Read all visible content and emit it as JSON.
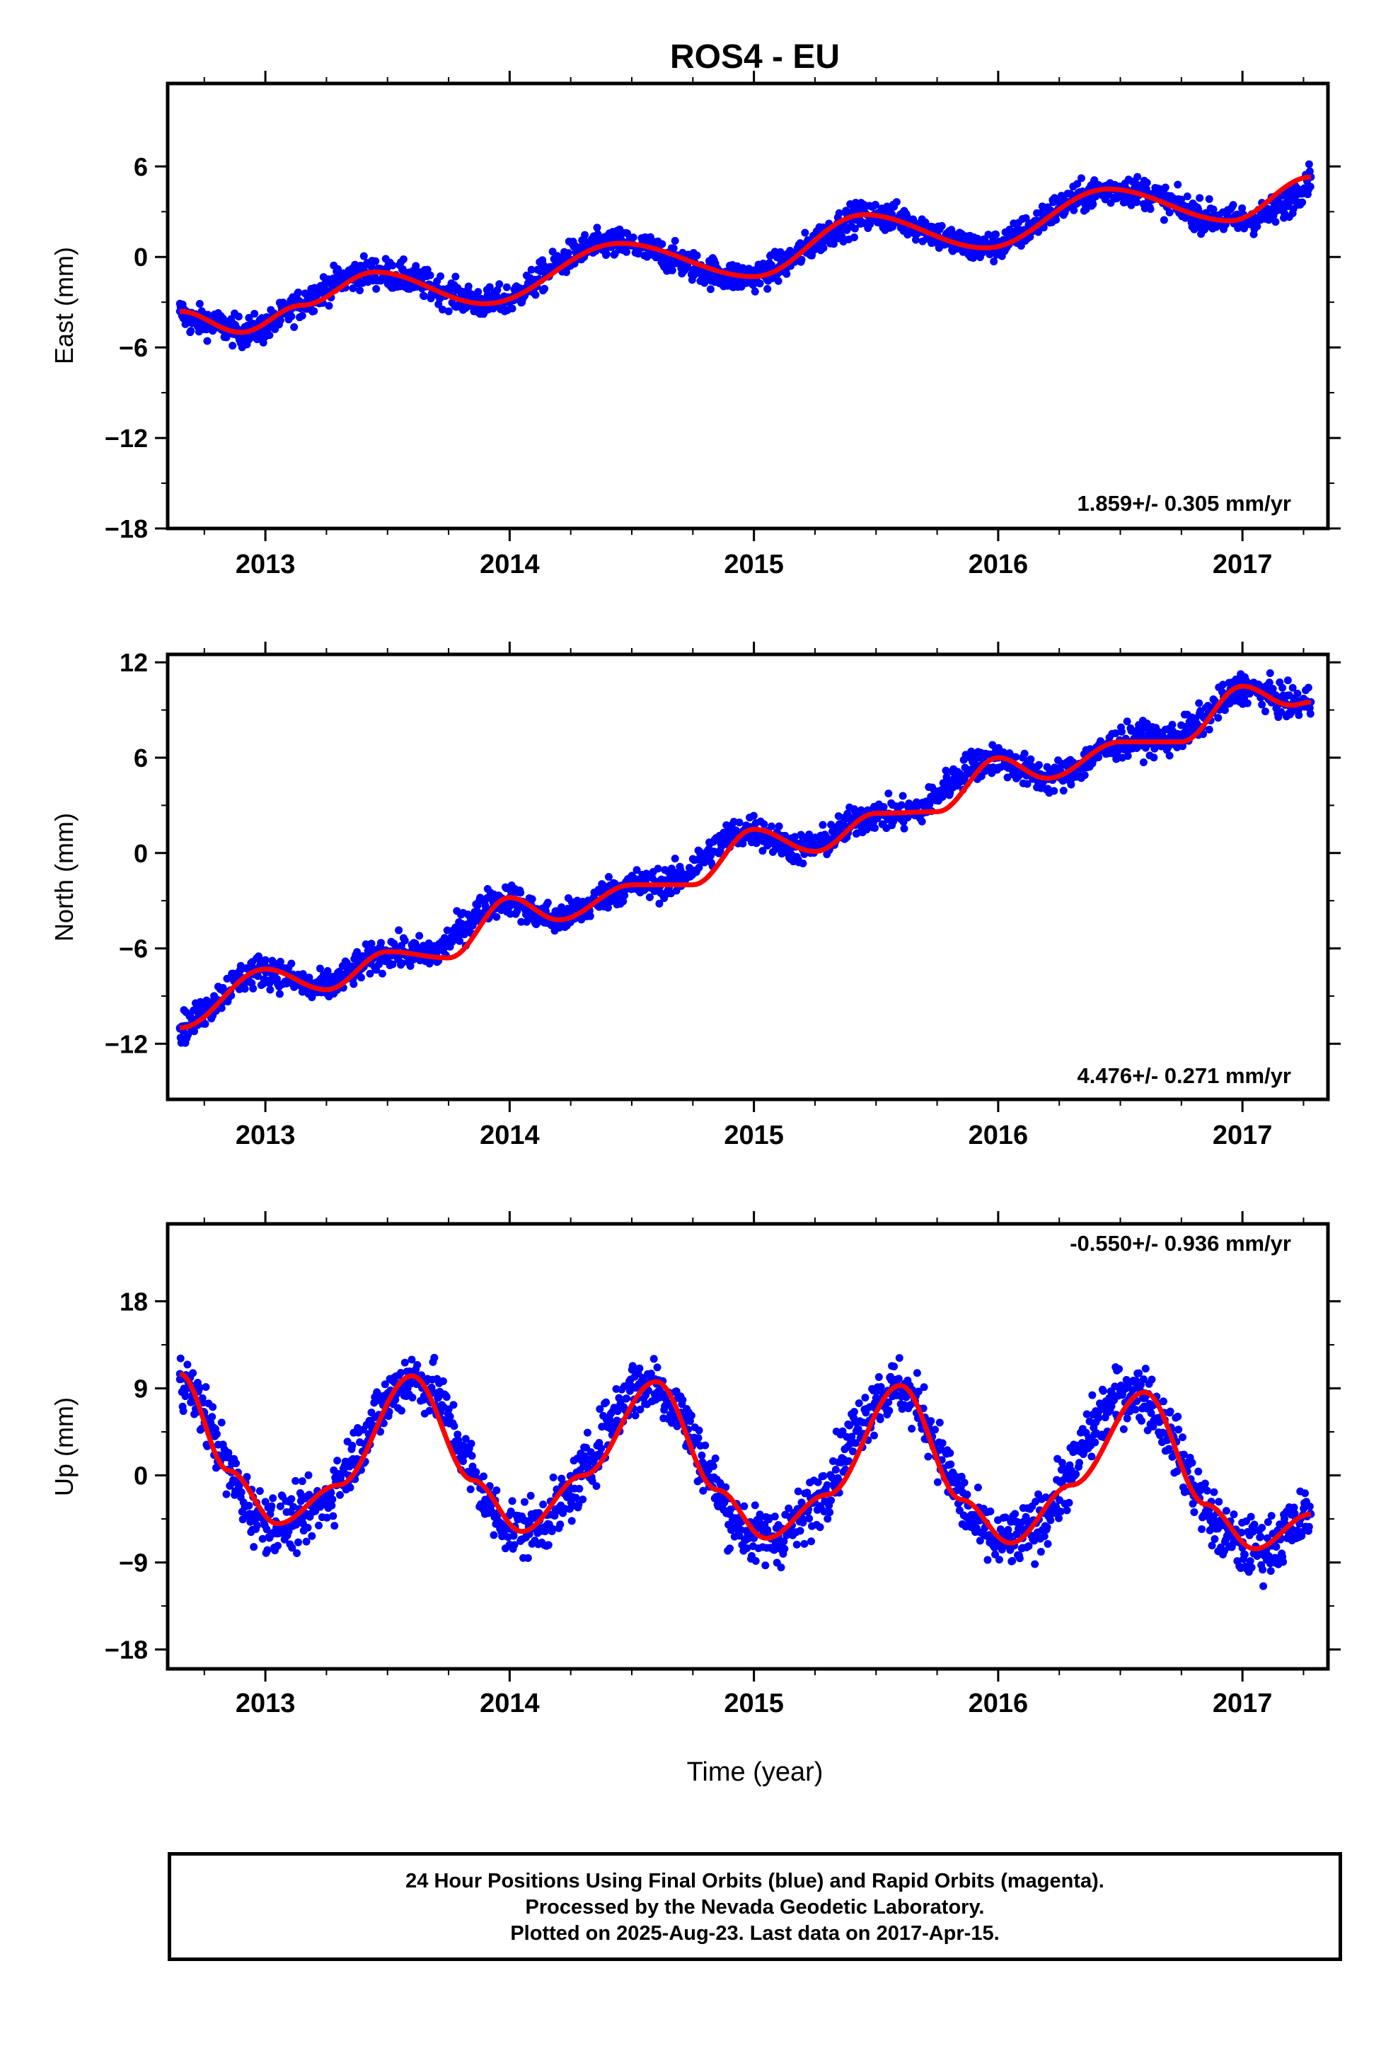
{
  "title": "ROS4 - EU",
  "xlabel": "Time (year)",
  "caption": {
    "line1": "24 Hour Positions Using Final Orbits (blue) and Rapid Orbits (magenta).",
    "line2": "Processed by the Nevada Geodetic Laboratory.",
    "line3": "Plotted on 2025-Aug-23. Last data on 2017-Apr-15."
  },
  "colors": {
    "points": "#0000ff",
    "fit": "#ff0000",
    "frame": "#000000"
  },
  "chart_data": [
    {
      "type": "scatter",
      "ylabel": "East (mm)",
      "rate_label": "1.859+/- 0.305 mm/yr",
      "xlim": [
        2012.6,
        2017.35
      ],
      "ylim": [
        -18,
        11.5
      ],
      "yticks": [
        "6",
        "0",
        "−6",
        "−12",
        "−18"
      ],
      "ytick_values": [
        6,
        0,
        -6,
        -12,
        -18
      ],
      "xticks": [
        "2013",
        "2014",
        "2015",
        "2016",
        "2017"
      ],
      "series": [
        {
          "kind": "points",
          "x": [
            2012.65,
            2012.7,
            2012.75,
            2012.8,
            2012.9,
            2013.0,
            2013.1,
            2013.2,
            2013.3,
            2013.4,
            2013.5,
            2013.6,
            2013.7,
            2013.8,
            2013.9,
            2014.0,
            2014.1,
            2014.2,
            2014.3,
            2014.4,
            2014.5,
            2014.6,
            2014.7,
            2014.8,
            2014.9,
            2015.0,
            2015.1,
            2015.2,
            2015.3,
            2015.4,
            2015.5,
            2015.6,
            2015.7,
            2015.8,
            2015.9,
            2016.0,
            2016.1,
            2016.2,
            2016.3,
            2016.4,
            2016.5,
            2016.6,
            2016.7,
            2016.8,
            2016.9,
            2017.0,
            2017.1,
            2017.2,
            2017.28
          ],
          "y": [
            -3.6,
            -4.3,
            -4.2,
            -4.5,
            -5.0,
            -4.7,
            -3.6,
            -2.5,
            -1.6,
            -1.0,
            -1.1,
            -1.5,
            -2.1,
            -2.7,
            -3.1,
            -2.8,
            -1.7,
            -0.4,
            0.5,
            0.9,
            0.8,
            0.3,
            -0.3,
            -0.9,
            -1.3,
            -1.3,
            -0.7,
            0.4,
            1.6,
            2.5,
            2.8,
            2.5,
            1.9,
            1.1,
            0.6,
            0.7,
            1.6,
            2.8,
            3.7,
            4.3,
            4.5,
            4.3,
            3.6,
            2.9,
            2.5,
            2.4,
            2.8,
            3.8,
            5.3
          ]
        },
        {
          "kind": "fit",
          "x": [
            2012.65,
            2012.9,
            2013.15,
            2013.45,
            2013.9,
            2014.45,
            2015.0,
            2015.45,
            2015.95,
            2016.45,
            2016.95,
            2017.28
          ],
          "y": [
            -3.6,
            -5.0,
            -3.2,
            -1.0,
            -3.1,
            0.9,
            -1.3,
            2.8,
            0.6,
            4.5,
            2.4,
            5.3
          ]
        }
      ]
    },
    {
      "type": "scatter",
      "ylabel": "North (mm)",
      "rate_label": "4.476+/- 0.271 mm/yr",
      "xlim": [
        2012.6,
        2017.35
      ],
      "ylim": [
        -15.5,
        12.5
      ],
      "yticks": [
        "12",
        "6",
        "0",
        "−6",
        "−12"
      ],
      "ytick_values": [
        12,
        6,
        0,
        -6,
        -12
      ],
      "xticks": [
        "2013",
        "2014",
        "2015",
        "2016",
        "2017"
      ],
      "series": [
        {
          "kind": "points",
          "x": [
            2012.65,
            2012.7,
            2012.8,
            2012.9,
            2013.0,
            2013.1,
            2013.2,
            2013.3,
            2013.4,
            2013.5,
            2013.6,
            2013.7,
            2013.8,
            2013.9,
            2014.0,
            2014.1,
            2014.2,
            2014.3,
            2014.4,
            2014.5,
            2014.6,
            2014.7,
            2014.8,
            2014.9,
            2015.0,
            2015.1,
            2015.2,
            2015.3,
            2015.4,
            2015.5,
            2015.6,
            2015.7,
            2015.8,
            2015.9,
            2016.0,
            2016.1,
            2016.2,
            2016.3,
            2016.4,
            2016.5,
            2016.6,
            2016.7,
            2016.8,
            2016.9,
            2017.0,
            2017.1,
            2017.2,
            2017.28
          ],
          "y": [
            -11.0,
            -10.7,
            -9.2,
            -7.8,
            -7.3,
            -7.9,
            -8.6,
            -8.1,
            -6.9,
            -6.2,
            -6.3,
            -6.3,
            -4.8,
            -3.3,
            -2.8,
            -3.8,
            -4.2,
            -3.5,
            -2.5,
            -2.0,
            -2.0,
            -1.6,
            -0.2,
            1.1,
            1.5,
            0.7,
            0.2,
            0.8,
            1.9,
            2.5,
            2.4,
            2.9,
            4.4,
            5.6,
            6.0,
            5.2,
            4.7,
            5.1,
            6.2,
            7.0,
            7.2,
            7.1,
            7.9,
            9.3,
            10.5,
            10.0,
            9.3,
            9.5
          ]
        },
        {
          "kind": "fit",
          "x": [
            2012.65,
            2013.0,
            2013.25,
            2013.5,
            2013.75,
            2014.0,
            2014.2,
            2014.5,
            2014.75,
            2015.0,
            2015.25,
            2015.5,
            2015.75,
            2016.0,
            2016.2,
            2016.5,
            2016.75,
            2017.0,
            2017.2,
            2017.28
          ],
          "y": [
            -11.0,
            -7.3,
            -8.6,
            -6.2,
            -6.6,
            -2.8,
            -4.2,
            -2.0,
            -2.0,
            1.5,
            0.1,
            2.5,
            2.6,
            6.0,
            4.7,
            7.0,
            7.0,
            10.5,
            9.3,
            9.5
          ]
        }
      ]
    },
    {
      "type": "scatter",
      "ylabel": "Up (mm)",
      "rate_label": "-0.550+/- 0.936 mm/yr",
      "xlim": [
        2012.6,
        2017.35
      ],
      "ylim": [
        -20,
        26
      ],
      "yticks": [
        "18",
        "9",
        "0",
        "−9",
        "−18"
      ],
      "ytick_values": [
        18,
        9,
        0,
        -9,
        -18
      ],
      "xticks": [
        "2013",
        "2014",
        "2015",
        "2016",
        "2017"
      ],
      "series": [
        {
          "kind": "points",
          "x": [
            2012.65,
            2012.75,
            2012.85,
            2012.95,
            2013.05,
            2013.15,
            2013.25,
            2013.35,
            2013.45,
            2013.55,
            2013.6,
            2013.7,
            2013.8,
            2013.9,
            2014.0,
            2014.1,
            2014.2,
            2014.3,
            2014.4,
            2014.5,
            2014.6,
            2014.7,
            2014.8,
            2014.9,
            2015.0,
            2015.1,
            2015.2,
            2015.3,
            2015.4,
            2015.5,
            2015.6,
            2015.7,
            2015.8,
            2015.9,
            2016.0,
            2016.1,
            2016.2,
            2016.3,
            2016.4,
            2016.5,
            2016.6,
            2016.7,
            2016.8,
            2016.9,
            2017.0,
            2017.1,
            2017.2,
            2017.28
          ],
          "y": [
            10.5,
            6.5,
            0.5,
            -4.0,
            -5.0,
            -4.5,
            -2.5,
            1.5,
            6.0,
            9.5,
            10.3,
            8.5,
            3.0,
            -2.5,
            -5.5,
            -5.5,
            -3.5,
            0.0,
            5.0,
            9.0,
            9.5,
            6.5,
            1.0,
            -4.0,
            -6.5,
            -6.3,
            -4.5,
            -1.0,
            4.0,
            8.0,
            9.2,
            6.0,
            0.0,
            -5.0,
            -7.0,
            -6.5,
            -4.0,
            0.5,
            5.5,
            8.5,
            8.5,
            4.5,
            -1.0,
            -5.5,
            -7.5,
            -7.5,
            -5.5,
            -4.0
          ]
        },
        {
          "kind": "fit",
          "x": [
            2012.65,
            2012.85,
            2013.05,
            2013.3,
            2013.6,
            2013.85,
            2014.05,
            2014.3,
            2014.6,
            2014.85,
            2015.05,
            2015.3,
            2015.6,
            2015.85,
            2016.05,
            2016.3,
            2016.6,
            2016.85,
            2017.05,
            2017.28
          ],
          "y": [
            10.5,
            0.5,
            -5.0,
            -1.0,
            10.3,
            -0.5,
            -5.8,
            0.0,
            9.7,
            -1.5,
            -6.5,
            -2.0,
            9.3,
            -2.5,
            -7.0,
            -1.0,
            8.6,
            -3.0,
            -7.6,
            -4.0
          ]
        }
      ]
    }
  ]
}
